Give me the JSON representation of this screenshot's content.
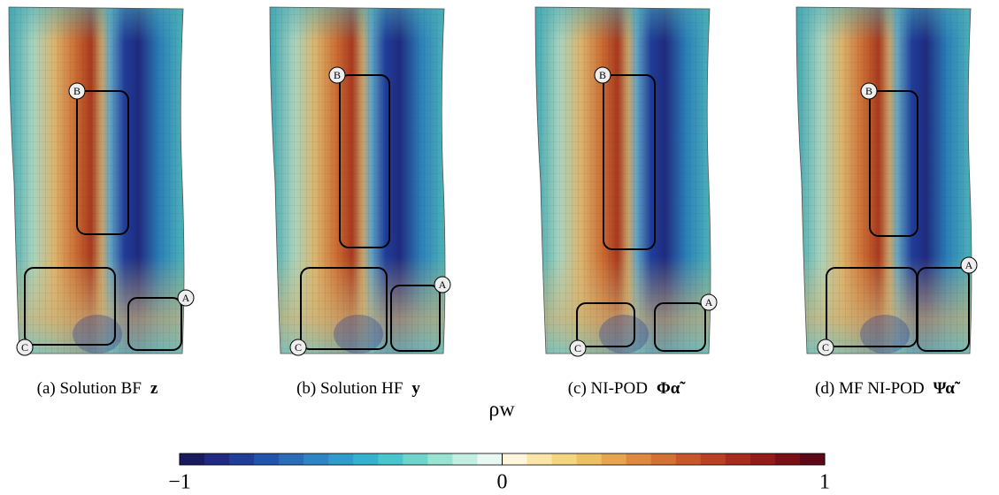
{
  "panels": [
    {
      "caption": "(a) Solution BF",
      "symbol": "z",
      "regions": [
        "A",
        "B",
        "C"
      ]
    },
    {
      "caption": "(b) Solution HF",
      "symbol": "y",
      "regions": [
        "A",
        "B",
        "C"
      ]
    },
    {
      "caption": "(c) NI-POD",
      "symbol": "Φα̃",
      "regions": [
        "A",
        "B",
        "C"
      ]
    },
    {
      "caption": "(d) MF NI-POD",
      "symbol": "Ψα̃",
      "regions": [
        "A",
        "B",
        "C"
      ]
    }
  ],
  "colorbar": {
    "label": "ρw",
    "lim": [
      -1,
      1
    ],
    "ticks": [
      {
        "value": -1,
        "label": "−1"
      },
      0,
      1
    ],
    "colors": [
      "#1a1a5e",
      "#1f2a80",
      "#1f3d99",
      "#2155ad",
      "#2a6cb9",
      "#2f85c4",
      "#2f9ccc",
      "#35b2cf",
      "#48c5cd",
      "#6dd5cc",
      "#98e3d2",
      "#c3efe3",
      "#e8f8f2",
      "#fff6dc",
      "#fbe6a8",
      "#f5d57e",
      "#eec064",
      "#e6a54e",
      "#dd8a3f",
      "#d37034",
      "#c7572a",
      "#b94022",
      "#a82c1c",
      "#931c18",
      "#7a1016",
      "#5c0816"
    ]
  }
}
